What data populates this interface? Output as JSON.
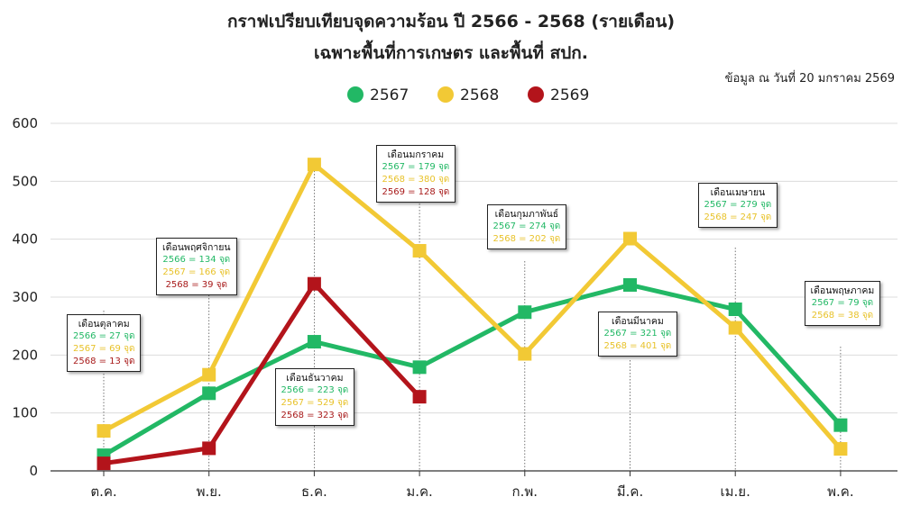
{
  "titles": {
    "line1": "กราฟเปรียบเทียบจุดความร้อน ปี 2566 - 2568 (รายเดือน)",
    "line2": "เฉพาะพื้นที่การเกษตร และพื้นที่ สปก."
  },
  "source_note": "ข้อมูล ณ วันที่ 20 มกราคม 2569",
  "chart_data": {
    "type": "line",
    "categories": [
      "ต.ค.",
      "พ.ย.",
      "ธ.ค.",
      "ม.ค.",
      "ก.พ.",
      "มี.ค.",
      "เม.ย.",
      "พ.ค."
    ],
    "ylim": [
      0,
      600
    ],
    "yticks": [
      0,
      100,
      200,
      300,
      400,
      500,
      600
    ],
    "legend_position": "top-center",
    "series": [
      {
        "name": "2567",
        "color": "#22b865",
        "values": [
          27,
          134,
          223,
          179,
          274,
          321,
          279,
          79
        ]
      },
      {
        "name": "2568",
        "color": "#f2c935",
        "values": [
          69,
          166,
          529,
          380,
          202,
          401,
          247,
          38
        ]
      },
      {
        "name": "2569",
        "color": "#b3141b",
        "values": [
          13,
          39,
          323,
          128,
          null,
          null,
          null,
          null
        ]
      }
    ],
    "annotations": [
      {
        "title": "เดือนตุลาคม",
        "lines": [
          {
            "text": "2566 = 27 จุด",
            "cls": "c0"
          },
          {
            "text": "2567 = 69 จุด",
            "cls": "c1"
          },
          {
            "text": "2568 = 13 จุด",
            "cls": "c2"
          }
        ]
      },
      {
        "title": "เดือนพฤศจิกายน",
        "lines": [
          {
            "text": "2566 = 134 จุด",
            "cls": "c0"
          },
          {
            "text": "2567 = 166 จุด",
            "cls": "c1"
          },
          {
            "text": "2568 = 39 จุด",
            "cls": "c2"
          }
        ]
      },
      {
        "title": "เดือนธันวาคม",
        "lines": [
          {
            "text": "2566 = 223 จุด",
            "cls": "c0"
          },
          {
            "text": "2567 = 529 จุด",
            "cls": "c1"
          },
          {
            "text": "2568 = 323 จุด",
            "cls": "c2"
          }
        ]
      },
      {
        "title": "เดือนมกราคม",
        "lines": [
          {
            "text": "2567 = 179 จุด",
            "cls": "c0"
          },
          {
            "text": "2568 = 380 จุด",
            "cls": "c1"
          },
          {
            "text": "2569 = 128 จุด",
            "cls": "c2"
          }
        ]
      },
      {
        "title": "เดือนกุมภาพันธ์",
        "lines": [
          {
            "text": "2567 = 274 จุด",
            "cls": "c0"
          },
          {
            "text": "2568 = 202 จุด",
            "cls": "c1"
          }
        ]
      },
      {
        "title": "เดือนมีนาคม",
        "lines": [
          {
            "text": "2567 = 321 จุด",
            "cls": "c0"
          },
          {
            "text": "2568 = 401 จุด",
            "cls": "c1"
          }
        ]
      },
      {
        "title": "เดือนเมษายน",
        "lines": [
          {
            "text": "2567 = 279 จุด",
            "cls": "c0"
          },
          {
            "text": "2568 = 247 จุด",
            "cls": "c1"
          }
        ]
      },
      {
        "title": "เดือนพฤษภาคม",
        "lines": [
          {
            "text": "2567 = 79 จุด",
            "cls": "c0"
          },
          {
            "text": "2568 = 38 จุด",
            "cls": "c1"
          }
        ]
      }
    ]
  }
}
